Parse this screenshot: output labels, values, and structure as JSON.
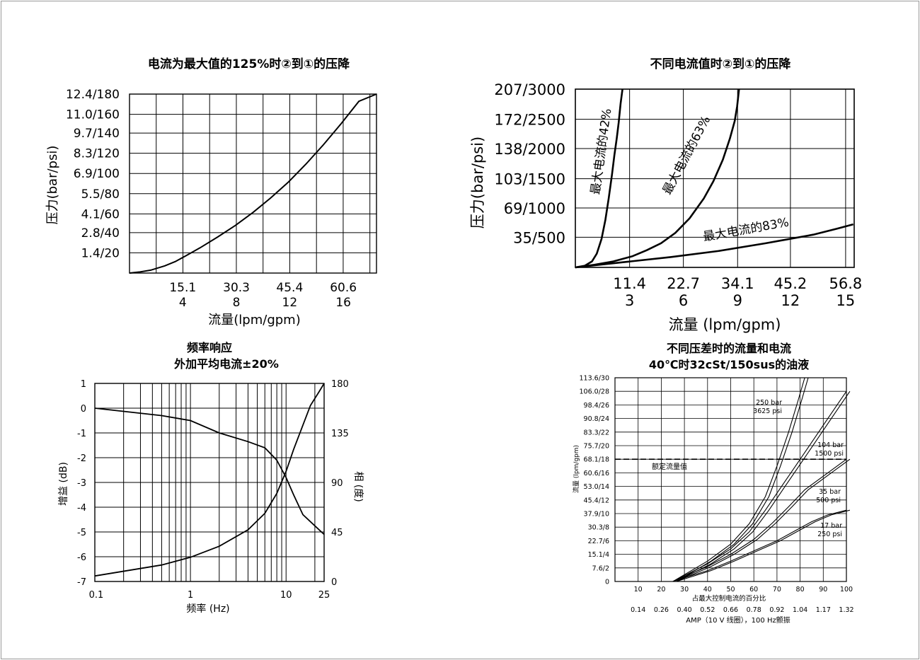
{
  "chart_data": [
    {
      "type": "line",
      "title": "电流为最大值的125%时②到①的压降",
      "xlabel": "流量(lpm/gpm)",
      "ylabel": "压力(bar/psi)",
      "xlim": [
        0,
        70.0
      ],
      "ylim": [
        0,
        12.4
      ],
      "x_ticks": [
        {
          "x": 15.1,
          "top": "15.1",
          "bottom": "4"
        },
        {
          "x": 30.3,
          "top": "30.3",
          "bottom": "8"
        },
        {
          "x": 45.4,
          "top": "45.4",
          "bottom": "12"
        },
        {
          "x": 60.6,
          "top": "60.6",
          "bottom": "16"
        }
      ],
      "y_ticks": [
        {
          "y": 1.4,
          "label": "1.4/20"
        },
        {
          "y": 2.8,
          "label": "2.8/40"
        },
        {
          "y": 4.1,
          "label": "4.1/60"
        },
        {
          "y": 5.5,
          "label": "5.5/80"
        },
        {
          "y": 6.9,
          "label": "6.9/100"
        },
        {
          "y": 8.3,
          "label": "8.3/120"
        },
        {
          "y": 9.7,
          "label": "9.7/140"
        },
        {
          "y": 11.0,
          "label": "11.0/160"
        },
        {
          "y": 12.4,
          "label": "12.4/180"
        }
      ],
      "grid": true,
      "series": [
        {
          "x": [
            0,
            3,
            6,
            10,
            13,
            16,
            20,
            25,
            30,
            35,
            40,
            45,
            50,
            55,
            60,
            65,
            70
          ],
          "y": [
            0.0,
            0.08,
            0.2,
            0.5,
            0.8,
            1.2,
            1.75,
            2.5,
            3.3,
            4.2,
            5.2,
            6.3,
            7.55,
            8.9,
            10.35,
            11.9,
            13.25
          ]
        }
      ]
    },
    {
      "type": "line",
      "title": "不同电流值时②到①的压降",
      "xlabel": "流量 (lpm/gpm)",
      "ylabel": "压力(bar/psi)",
      "xlim": [
        0,
        58.6
      ],
      "ylim": [
        0,
        207
      ],
      "x_ticks": [
        {
          "x": 11.4,
          "top": "11.4",
          "bottom": "3"
        },
        {
          "x": 22.7,
          "top": "22.7",
          "bottom": "6"
        },
        {
          "x": 34.1,
          "top": "34.1",
          "bottom": "9"
        },
        {
          "x": 45.2,
          "top": "45.2",
          "bottom": "12"
        },
        {
          "x": 56.8,
          "top": "56.8",
          "bottom": "15"
        }
      ],
      "y_ticks": [
        {
          "y": 35,
          "label": "35/500"
        },
        {
          "y": 69,
          "label": "69/1000"
        },
        {
          "y": 103,
          "label": "103/1500"
        },
        {
          "y": 138,
          "label": "138/2000"
        },
        {
          "y": 172,
          "label": "172/2500"
        },
        {
          "y": 207,
          "label": "207/3000"
        }
      ],
      "grid": true,
      "series": [
        {
          "name": "最大电流的42%",
          "x": [
            0,
            2,
            3.5,
            4.5,
            5.5,
            6.3,
            7.0,
            7.7,
            8.2,
            8.7,
            9.1,
            9.5,
            9.9
          ],
          "y": [
            0,
            2,
            7,
            16,
            33,
            55,
            80,
            108,
            130,
            150,
            168,
            190,
            207
          ]
        },
        {
          "name": "最大电流的63%",
          "x": [
            0,
            4,
            8,
            12,
            15,
            18,
            21,
            24,
            27,
            29,
            31,
            32.5,
            33.5,
            34.0,
            34.4
          ],
          "y": [
            0,
            3,
            7,
            13,
            20,
            28,
            40,
            57,
            80,
            100,
            125,
            150,
            170,
            187,
            207
          ]
        },
        {
          "name": "最大电流的83%",
          "x": [
            0,
            10,
            20,
            30,
            40,
            45,
            50,
            55,
            58.4
          ],
          "y": [
            0,
            6,
            12,
            19,
            28,
            33,
            38,
            45,
            50
          ]
        }
      ]
    },
    {
      "type": "line",
      "title": "频率响应",
      "subtitle": "外加平均电流±20%",
      "xlabel": "频率 (Hz)",
      "ylabel": "增益 (dB)",
      "ylabel_right": "相 (度)",
      "x_scale": "log",
      "xlim": [
        0.1,
        25
      ],
      "ylim": [
        -7,
        1
      ],
      "ylim_right": [
        0,
        180
      ],
      "x_tick_labels": [
        "0.1",
        "1",
        "10",
        "25"
      ],
      "y_tick_labels": [
        "1",
        "0",
        "-1",
        "-2",
        "-3",
        "-4",
        "-5",
        "-6",
        "-7"
      ],
      "y_right_tick_labels": [
        "180",
        "135",
        "90",
        "45",
        "0"
      ],
      "grid": true,
      "series": [
        {
          "name": "增益",
          "x": [
            0.1,
            0.5,
            1,
            2,
            4,
            6,
            8,
            10,
            12,
            15,
            20,
            25
          ],
          "y": [
            0,
            -0.3,
            -0.5,
            -1.0,
            -1.35,
            -1.6,
            -2.1,
            -2.8,
            -3.5,
            -4.3,
            -4.75,
            -5.1
          ]
        },
        {
          "name": "相",
          "x": [
            0.1,
            0.5,
            1,
            2,
            4,
            6,
            8,
            10,
            12,
            15,
            18,
            22,
            25
          ],
          "y": [
            5,
            15,
            22,
            32,
            47,
            62,
            80,
            100,
            120,
            142,
            160,
            172,
            180
          ]
        }
      ]
    },
    {
      "type": "line",
      "title": "不同压差时的流量和电流",
      "subtitle": "40℃时32cSt/150sus的油液",
      "xlabel": "占最大控制电流的百分比",
      "xlabel2": "AMP（10 V 线圈），100 Hz颤振",
      "ylabel": "流量 (lpm/gpm)",
      "xlim": [
        0,
        100
      ],
      "ylim": [
        0,
        30
      ],
      "x_tick_labels": [
        "10",
        "20",
        "30",
        "40",
        "50",
        "60",
        "70",
        "80",
        "90",
        "100"
      ],
      "amp_labels": [
        "0.14",
        "0.26",
        "0.40",
        "0.52",
        "0.66",
        "0.78",
        "0.92",
        "1.04",
        "1.17",
        "1.32"
      ],
      "y_tick_labels": [
        "0",
        "7.6/2",
        "15.1/4",
        "22.7/6",
        "30.3/8",
        "37.9/10",
        "45.4/12",
        "53.0/14",
        "60.6/16",
        "68.1/18",
        "75.7/20",
        "83.3/22",
        "90.8/24",
        "98.4/26",
        "106.0/28",
        "113.6/30"
      ],
      "rated_flow": {
        "y": 18,
        "label": "额定流量值"
      },
      "grid": true,
      "series": [
        {
          "name": "250 bar\n3625 psi",
          "x": [
            25,
            40,
            50,
            58,
            65,
            70,
            75,
            79,
            82
          ],
          "y": [
            0,
            3,
            5.5,
            8.5,
            12.5,
            17,
            22,
            26.5,
            30
          ]
        },
        {
          "name": "104 bar\n1500 psi",
          "x": [
            25,
            40,
            50,
            58,
            65,
            72,
            78,
            85,
            92,
            100
          ],
          "y": [
            0,
            2.6,
            4.8,
            7.3,
            10.5,
            14,
            17,
            20.5,
            24,
            28
          ]
        },
        {
          "name": "35 bar\n500 psi",
          "x": [
            25,
            40,
            50,
            60,
            68,
            75,
            82,
            90,
            100
          ],
          "y": [
            0,
            2.2,
            4.0,
            6.2,
            8.6,
            11,
            13.5,
            15.5,
            18
          ]
        },
        {
          "name": "17 bar\n250 psi",
          "x": [
            25,
            40,
            50,
            60,
            70,
            78,
            85,
            92,
            100
          ],
          "y": [
            0,
            1.6,
            3.0,
            4.5,
            6.0,
            7.5,
            8.8,
            9.8,
            10.5
          ]
        }
      ]
    }
  ]
}
